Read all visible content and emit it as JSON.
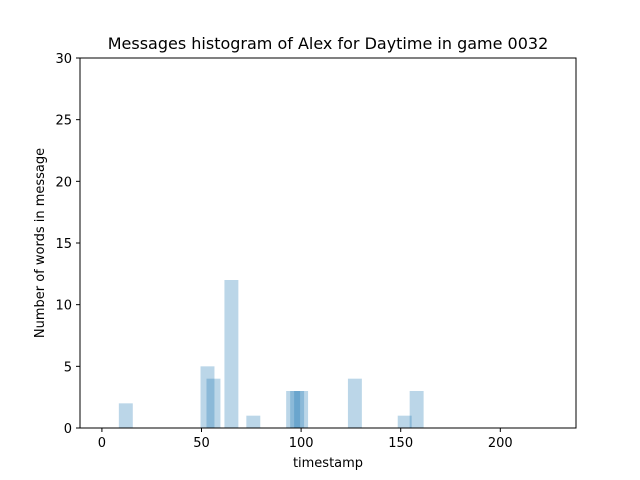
{
  "chart_data": {
    "type": "bar",
    "title": "Messages histogram of Alex for Daytime in game 0032",
    "xlabel": "timestamp",
    "ylabel": "Number of words in message",
    "xlim": [
      -11,
      238
    ],
    "ylim": [
      0,
      30
    ],
    "xticks": [
      0,
      50,
      100,
      150,
      200
    ],
    "yticks": [
      0,
      5,
      10,
      15,
      20,
      25,
      30
    ],
    "grid": false,
    "bar_color": "#1f77b4",
    "bar_opacity": 0.3,
    "bar_width": 7,
    "bars": [
      {
        "x": 12,
        "value": 2
      },
      {
        "x": 53,
        "value": 5
      },
      {
        "x": 56,
        "value": 4
      },
      {
        "x": 65,
        "value": 12
      },
      {
        "x": 76,
        "value": 1
      },
      {
        "x": 96,
        "value": 3
      },
      {
        "x": 98,
        "value": 3
      },
      {
        "x": 100,
        "value": 3
      },
      {
        "x": 127,
        "value": 4
      },
      {
        "x": 152,
        "value": 1
      },
      {
        "x": 158,
        "value": 3
      }
    ]
  }
}
